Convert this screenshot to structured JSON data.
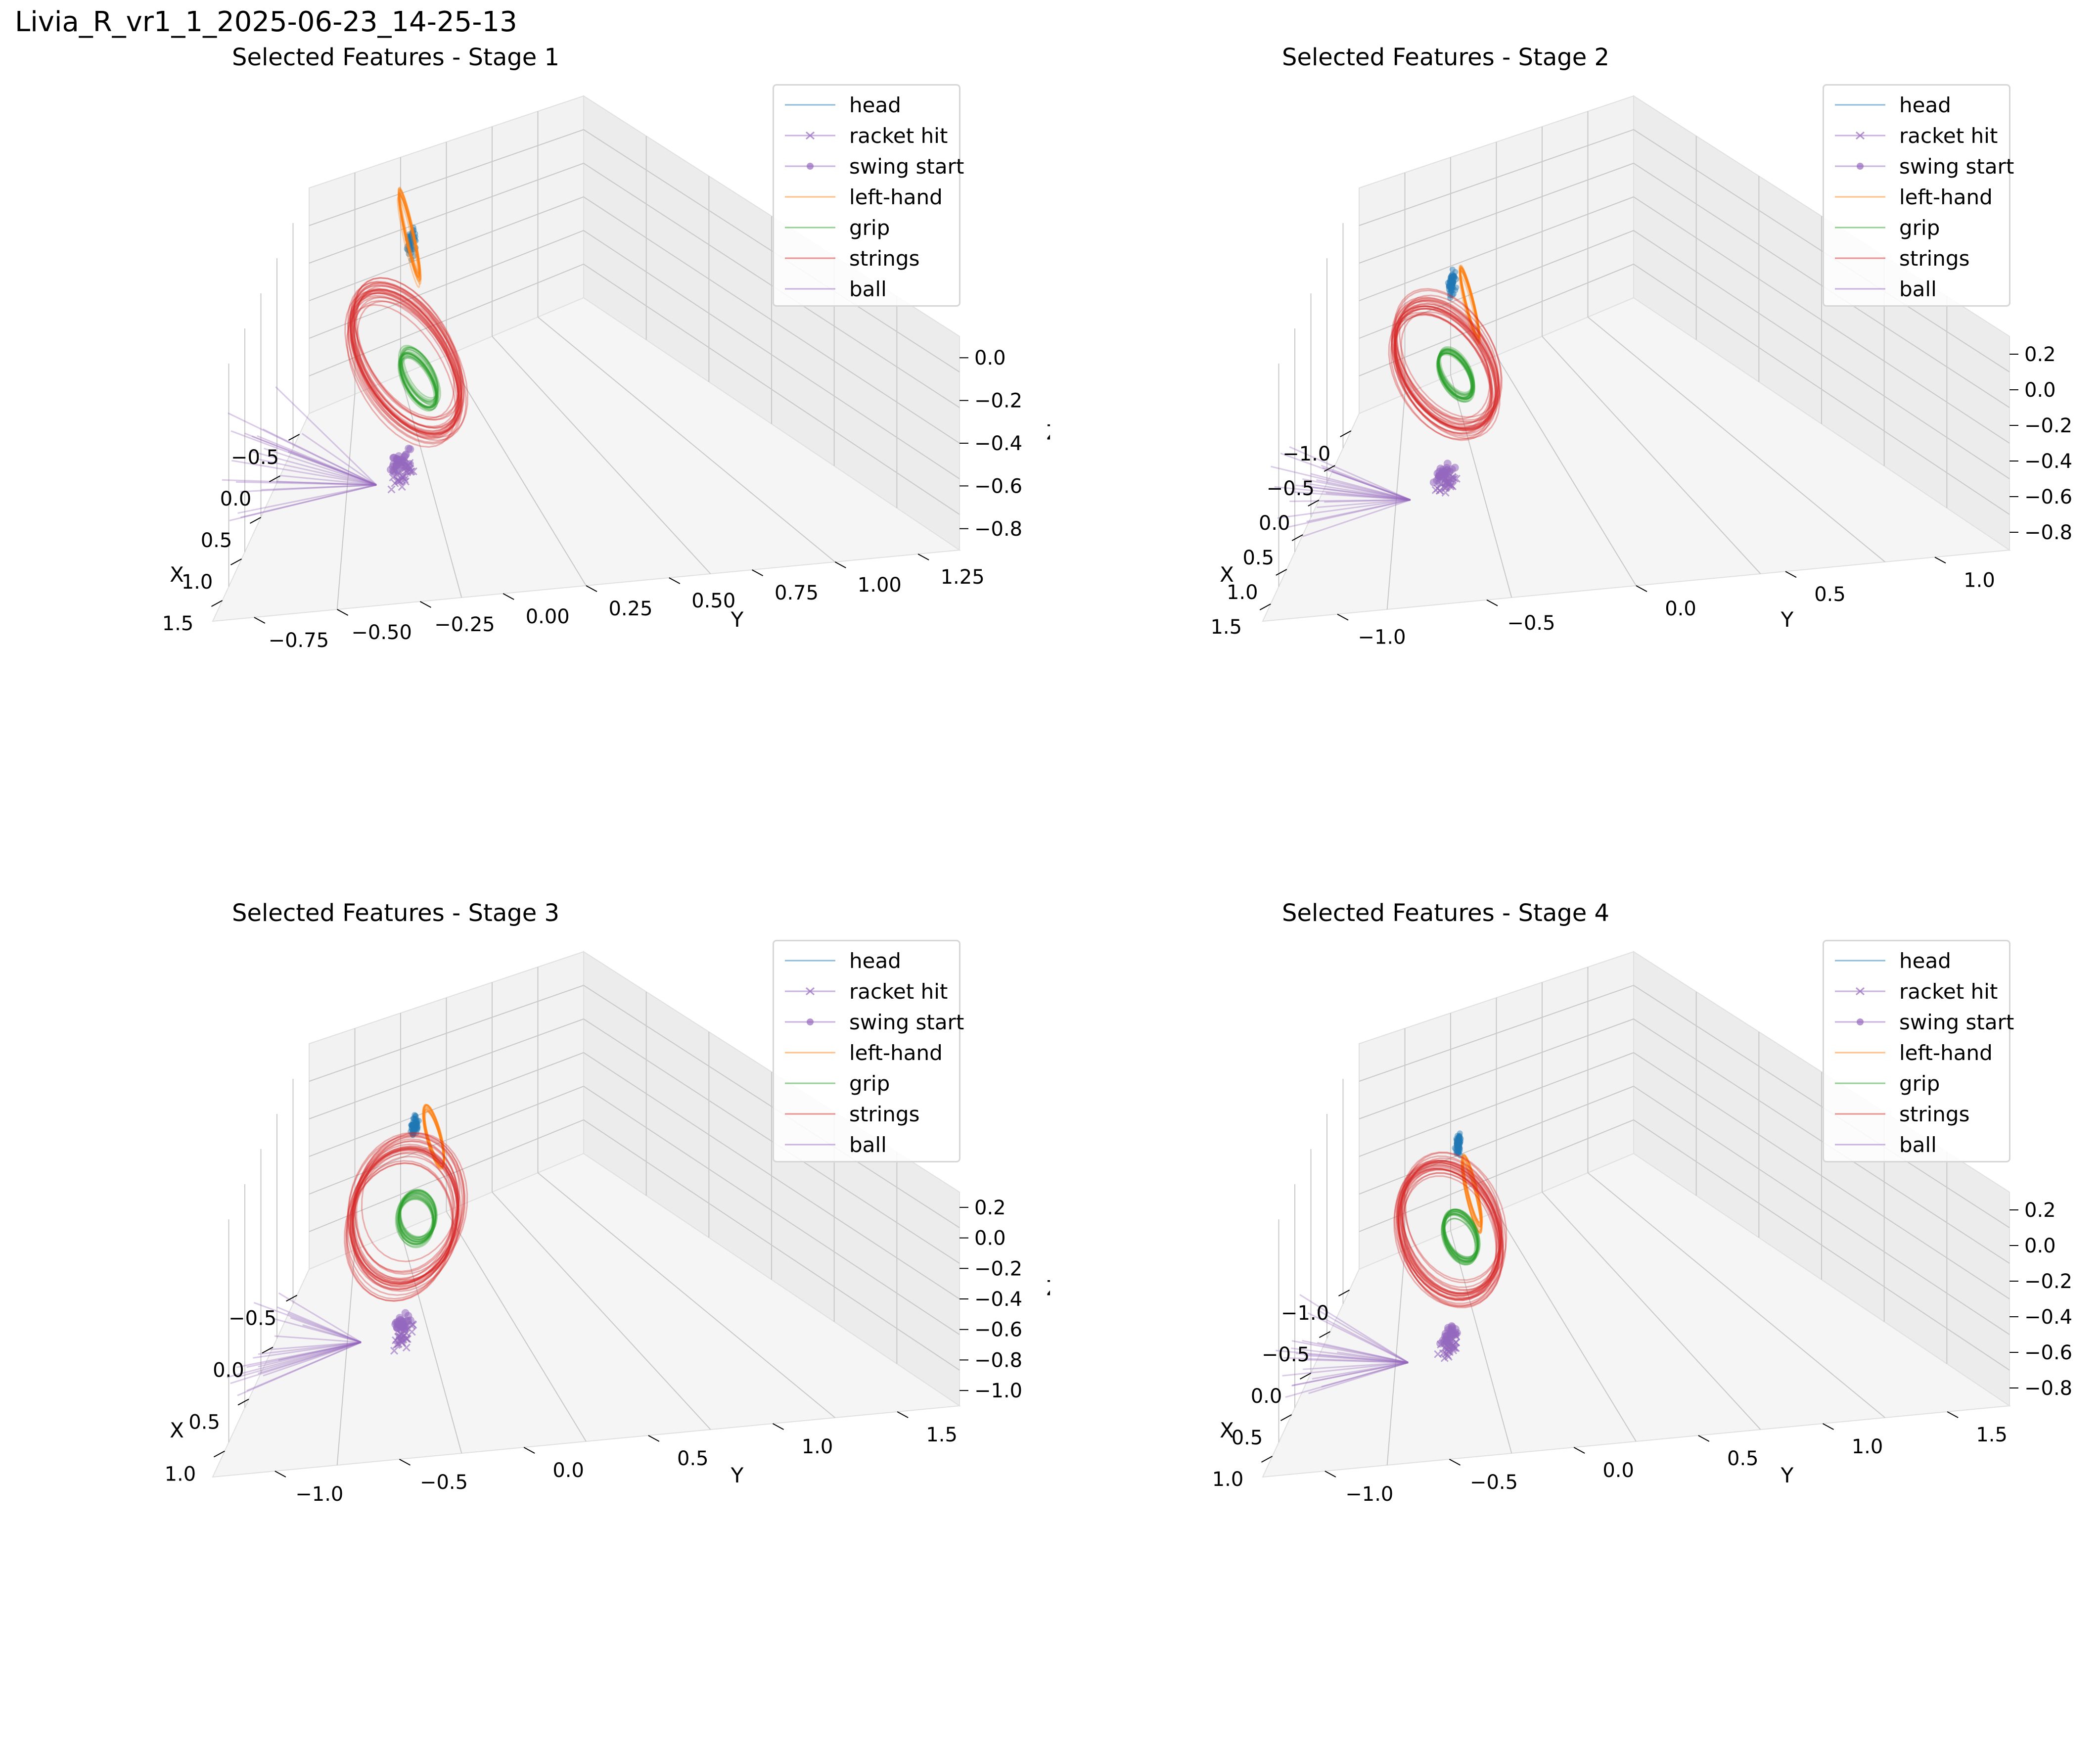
{
  "figure": {
    "suptitle": "Livia_R_vr1_1_2025-06-23_14-25-13"
  },
  "legend": [
    {
      "label": "head",
      "color": "#1f77b4",
      "marker": "none"
    },
    {
      "label": "racket hit",
      "color": "#9467bd",
      "marker": "x"
    },
    {
      "label": "swing start",
      "color": "#9467bd",
      "marker": "dot"
    },
    {
      "label": "left-hand",
      "color": "#ff7f0e",
      "marker": "none"
    },
    {
      "label": "grip",
      "color": "#2ca02c",
      "marker": "none"
    },
    {
      "label": "strings",
      "color": "#d62728",
      "marker": "none"
    },
    {
      "label": "ball",
      "color": "#9467bd",
      "marker": "none"
    }
  ],
  "chart_data": [
    {
      "type": "scatter",
      "projection": "3d",
      "title": "Selected Features - Stage 1",
      "xlabel": "X",
      "ylabel": "Y",
      "zlabel": "Z",
      "xticks": [
        "−0.5",
        "0.0",
        "0.5",
        "1.0",
        "1.5"
      ],
      "yticks": [
        "−0.75",
        "−0.50",
        "−0.25",
        "0.00",
        "0.25",
        "0.50",
        "0.75",
        "1.00",
        "1.25"
      ],
      "zticks": [
        "−0.8",
        "−0.6",
        "−0.4",
        "−0.2",
        "0.0"
      ],
      "xlim": [
        -0.8,
        1.7
      ],
      "ylim": [
        -0.85,
        1.35
      ],
      "zlim": [
        -0.85,
        0.1
      ],
      "legend_position": "top-right",
      "series": [
        {
          "name": "head",
          "color": "#1f77b4",
          "center": [
            0.1,
            0.25,
            0.0
          ]
        },
        {
          "name": "racket hit",
          "color": "#9467bd",
          "center": [
            0.85,
            0.1,
            -0.75
          ]
        },
        {
          "name": "swing start",
          "color": "#9467bd",
          "center": [
            0.75,
            0.15,
            -0.72
          ]
        },
        {
          "name": "left-hand",
          "color": "#ff7f0e",
          "center": [
            0.0,
            0.3,
            0.0
          ]
        },
        {
          "name": "grip",
          "color": "#2ca02c",
          "center": [
            0.4,
            0.1,
            -0.5
          ]
        },
        {
          "name": "strings",
          "color": "#d62728",
          "center": [
            0.4,
            0.2,
            -0.4
          ]
        },
        {
          "name": "ball",
          "color": "#9467bd",
          "center": [
            1.1,
            0.7,
            -0.5
          ]
        }
      ]
    },
    {
      "type": "scatter",
      "projection": "3d",
      "title": "Selected Features - Stage 2",
      "xlabel": "X",
      "ylabel": "Y",
      "zlabel": "",
      "xticks": [
        "−1.0",
        "−0.5",
        "0.0",
        "0.5",
        "1.0",
        "1.5"
      ],
      "yticks": [
        "−1.0",
        "−0.5",
        "0.0",
        "0.5",
        "1.0"
      ],
      "zticks": [
        "−0.8",
        "−0.6",
        "−0.4",
        "−0.2",
        "0.0",
        "0.2"
      ],
      "xlim": [
        -1.1,
        1.65
      ],
      "ylim": [
        -1.05,
        1.4
      ],
      "zlim": [
        -0.9,
        0.25
      ],
      "legend_position": "top-right",
      "series": [
        {
          "name": "head",
          "color": "#1f77b4",
          "center": [
            0.1,
            0.2,
            0.0
          ]
        },
        {
          "name": "racket hit",
          "color": "#9467bd",
          "center": [
            0.9,
            0.0,
            -0.75
          ]
        },
        {
          "name": "swing start",
          "color": "#9467bd",
          "center": [
            0.8,
            0.05,
            -0.72
          ]
        },
        {
          "name": "left-hand",
          "color": "#ff7f0e",
          "center": [
            -0.1,
            0.1,
            -0.2
          ]
        },
        {
          "name": "grip",
          "color": "#2ca02c",
          "center": [
            0.3,
            0.1,
            -0.4
          ]
        },
        {
          "name": "strings",
          "color": "#d62728",
          "center": [
            0.3,
            0.2,
            -0.35
          ]
        },
        {
          "name": "ball",
          "color": "#9467bd",
          "center": [
            1.2,
            0.7,
            -0.5
          ]
        }
      ]
    },
    {
      "type": "scatter",
      "projection": "3d",
      "title": "Selected Features - Stage 3",
      "xlabel": "X",
      "ylabel": "Y",
      "zlabel": "Z",
      "xticks": [
        "−0.5",
        "0.0",
        "0.5",
        "1.0"
      ],
      "yticks": [
        "−1.0",
        "−0.5",
        "0.0",
        "0.5",
        "1.0",
        "1.5"
      ],
      "zticks": [
        "−1.0",
        "−0.8",
        "−0.6",
        "−0.4",
        "−0.2",
        "0.0",
        "0.2"
      ],
      "xlim": [
        -0.8,
        1.4
      ],
      "ylim": [
        -1.05,
        1.6
      ],
      "zlim": [
        -1.05,
        0.25
      ],
      "legend_position": "top-right",
      "series": [
        {
          "name": "head",
          "color": "#1f77b4",
          "center": [
            0.1,
            0.2,
            0.0
          ]
        },
        {
          "name": "racket hit",
          "color": "#9467bd",
          "center": [
            0.85,
            0.0,
            -0.85
          ]
        },
        {
          "name": "swing start",
          "color": "#9467bd",
          "center": [
            0.75,
            0.05,
            -0.82
          ]
        },
        {
          "name": "left-hand",
          "color": "#ff7f0e",
          "center": [
            -0.1,
            0.1,
            -0.2
          ]
        },
        {
          "name": "grip",
          "color": "#2ca02c",
          "center": [
            0.3,
            0.1,
            -0.45
          ]
        },
        {
          "name": "strings",
          "color": "#d62728",
          "center": [
            0.3,
            0.2,
            -0.4
          ]
        },
        {
          "name": "ball",
          "color": "#9467bd",
          "center": [
            1.1,
            0.8,
            -0.55
          ]
        }
      ]
    },
    {
      "type": "scatter",
      "projection": "3d",
      "title": "Selected Features - Stage 4",
      "xlabel": "X",
      "ylabel": "Y",
      "zlabel": "",
      "xticks": [
        "−1.0",
        "−0.5",
        "0.0",
        "0.5",
        "1.0"
      ],
      "yticks": [
        "−1.0",
        "−0.5",
        "0.0",
        "0.5",
        "1.0",
        "1.5"
      ],
      "zticks": [
        "−0.8",
        "−0.6",
        "−0.4",
        "−0.2",
        "0.0",
        "0.2"
      ],
      "xlim": [
        -1.1,
        1.4
      ],
      "ylim": [
        -1.05,
        1.6
      ],
      "zlim": [
        -0.9,
        0.25
      ],
      "legend_position": "top-right",
      "series": [
        {
          "name": "head",
          "color": "#1f77b4",
          "center": [
            0.1,
            0.2,
            0.0
          ]
        },
        {
          "name": "racket hit",
          "color": "#9467bd",
          "center": [
            0.85,
            0.0,
            -0.75
          ]
        },
        {
          "name": "swing start",
          "color": "#9467bd",
          "center": [
            0.75,
            0.05,
            -0.72
          ]
        },
        {
          "name": "left-hand",
          "color": "#ff7f0e",
          "center": [
            0.0,
            0.1,
            -0.3
          ]
        },
        {
          "name": "grip",
          "color": "#2ca02c",
          "center": [
            0.3,
            0.1,
            -0.4
          ]
        },
        {
          "name": "strings",
          "color": "#d62728",
          "center": [
            0.3,
            0.2,
            -0.35
          ]
        },
        {
          "name": "ball",
          "color": "#9467bd",
          "center": [
            1.1,
            0.8,
            -0.5
          ]
        }
      ]
    }
  ]
}
